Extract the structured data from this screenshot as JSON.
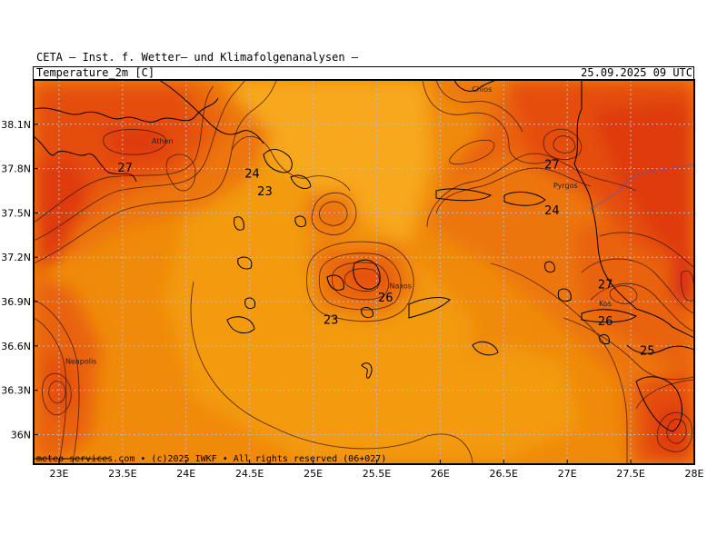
{
  "header": {
    "title": "CETA — Inst. f. Wetter— und Klimafolgenanalysen —",
    "variable": "Temperature_2m [C]",
    "valid_time": "25.09.2025 09 UTC"
  },
  "footer": "meteo-services.com • (c)2025 IWKF • All rights reserved (06+027)",
  "map": {
    "x_range": [
      22.8,
      28.0
    ],
    "y_range": [
      35.8,
      38.4
    ],
    "x_ticks": [
      {
        "value": 23.0,
        "label": "23E"
      },
      {
        "value": 23.5,
        "label": "23.5E"
      },
      {
        "value": 24.0,
        "label": "24E"
      },
      {
        "value": 24.5,
        "label": "24.5E"
      },
      {
        "value": 25.0,
        "label": "25E"
      },
      {
        "value": 25.5,
        "label": "25.5E"
      },
      {
        "value": 26.0,
        "label": "26E"
      },
      {
        "value": 26.5,
        "label": "26.5E"
      },
      {
        "value": 27.0,
        "label": "27E"
      },
      {
        "value": 27.5,
        "label": "27.5E"
      },
      {
        "value": 28.0,
        "label": "28E"
      }
    ],
    "y_ticks": [
      {
        "value": 36.0,
        "label": "36N"
      },
      {
        "value": 36.3,
        "label": "36.3N"
      },
      {
        "value": 36.6,
        "label": "36.6N"
      },
      {
        "value": 36.9,
        "label": "36.9N"
      },
      {
        "value": 37.2,
        "label": "37.2N"
      },
      {
        "value": 37.5,
        "label": "37.5N"
      },
      {
        "value": 37.8,
        "label": "37.8N"
      },
      {
        "value": 38.1,
        "label": "38.1N"
      }
    ],
    "grid": true,
    "colors": {
      "t22": "#f7a81b",
      "t23": "#f39a10",
      "t24": "#f08a0a",
      "t25": "#ec760a",
      "t26": "#e9620b",
      "t27": "#e54e0c",
      "t28": "#df3a10",
      "t29": "#d82513"
    },
    "contour_labels": [
      {
        "text": "27",
        "lon": 23.52,
        "lat": 37.81
      },
      {
        "text": "24",
        "lon": 24.52,
        "lat": 37.77
      },
      {
        "text": "23",
        "lon": 24.62,
        "lat": 37.65
      },
      {
        "text": "26",
        "lon": 25.57,
        "lat": 36.93
      },
      {
        "text": "23",
        "lon": 25.14,
        "lat": 36.78
      },
      {
        "text": "27",
        "lon": 26.88,
        "lat": 37.83
      },
      {
        "text": "24",
        "lon": 26.88,
        "lat": 37.52
      },
      {
        "text": "27",
        "lon": 27.3,
        "lat": 37.02
      },
      {
        "text": "26",
        "lon": 27.3,
        "lat": 36.77
      },
      {
        "text": "25",
        "lon": 27.63,
        "lat": 36.57
      }
    ],
    "places": [
      {
        "name": "Athen",
        "lon": 23.73,
        "lat": 37.97
      },
      {
        "name": "Naxos",
        "lon": 25.6,
        "lat": 36.99
      },
      {
        "name": "Chios",
        "lon": 26.25,
        "lat": 38.32
      },
      {
        "name": "Pyrgos",
        "lon": 26.89,
        "lat": 37.67
      },
      {
        "name": "Kos",
        "lon": 27.25,
        "lat": 36.87
      },
      {
        "name": "Neapolis",
        "lon": 23.05,
        "lat": 36.48
      }
    ]
  }
}
